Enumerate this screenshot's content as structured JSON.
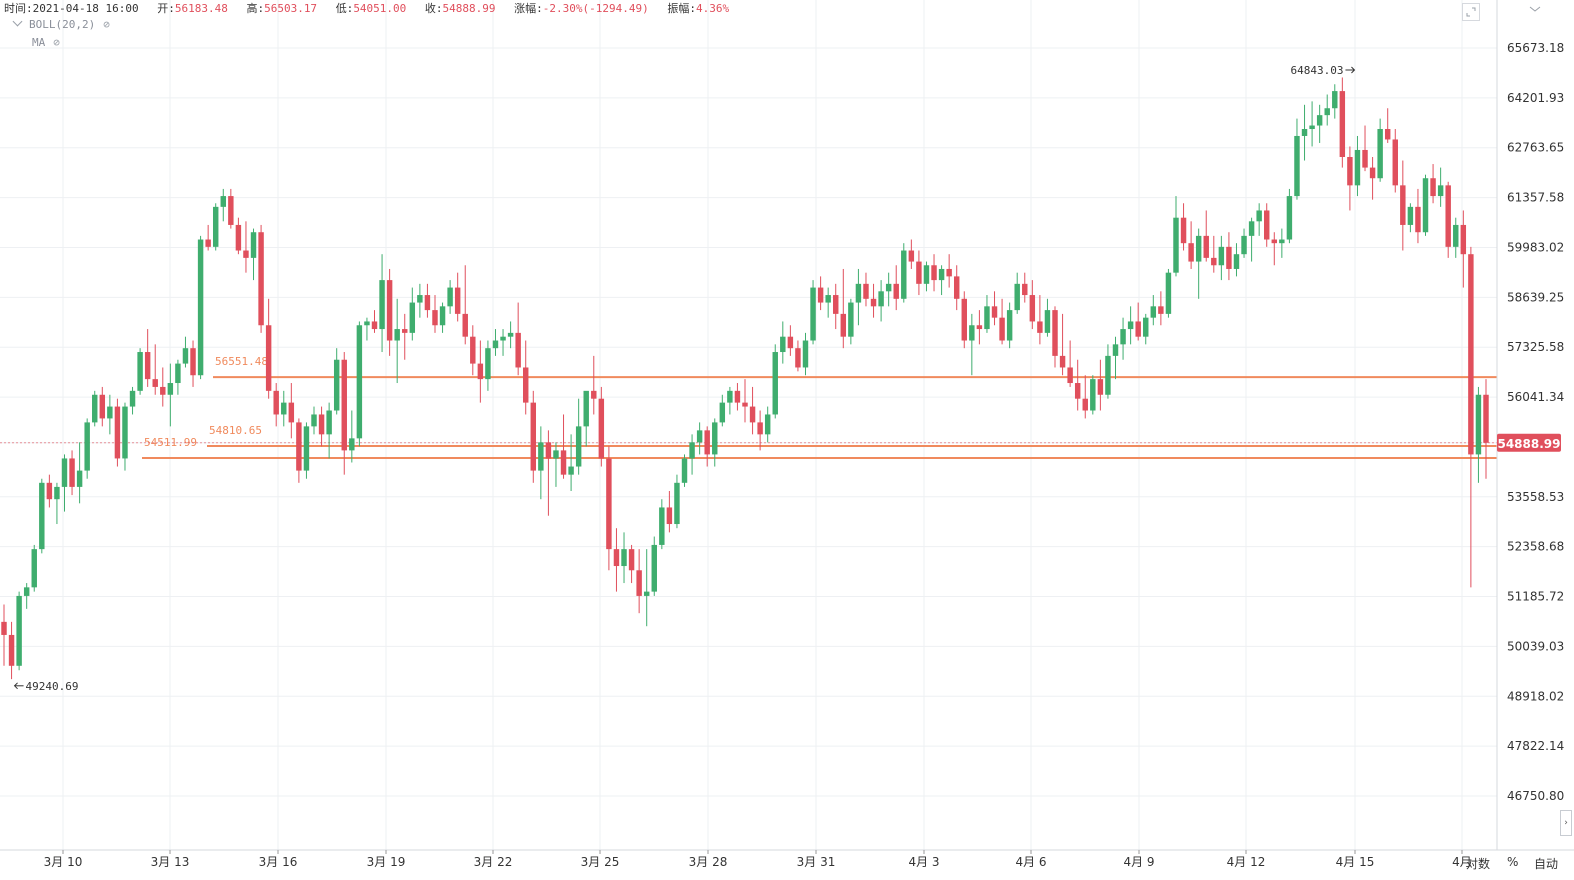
{
  "header": {
    "time_label": "时间:",
    "time_value": "2021-04-18 16:00",
    "open_label": "开:",
    "open_value": "56183.48",
    "high_label": "高:",
    "high_value": "56503.17",
    "low_label": "低:",
    "low_value": "54051.00",
    "close_label": "收:",
    "close_value": "54888.99",
    "change_label": "涨幅:",
    "change_value": "-2.30%(-1294.49)",
    "amp_label": "振幅:",
    "amp_value": "4.36%"
  },
  "indicators": [
    {
      "label": "BOLL(20,2)"
    },
    {
      "label": "MA"
    }
  ],
  "axis": {
    "bottom_right_percent": "%",
    "bottom_right_auto": "自动",
    "bottom_right_log": "对数"
  },
  "colors": {
    "up": "#3fad6e",
    "down": "#e04f5c",
    "hline": "#f08a5d",
    "grid": "#eef0f3",
    "price_tag": "#e04f5c"
  },
  "chart_data": {
    "type": "candlestick",
    "title": "",
    "y_scale": "log",
    "ylim": [
      46000,
      67000
    ],
    "y_ticks": [
      65673.18,
      64201.93,
      62763.65,
      61357.58,
      59983.02,
      58639.25,
      57325.58,
      56041.34,
      54888.99,
      53558.53,
      52358.68,
      51185.72,
      50039.03,
      48918.02,
      47822.14,
      46750.8
    ],
    "x_ticks": [
      "3月 10",
      "3月 13",
      "3月 16",
      "3月 19",
      "3月 22",
      "3月 25",
      "3月 28",
      "3月 31",
      "4月 3",
      "4月 6",
      "4月 9",
      "4月 12",
      "4月 15",
      "4月"
    ],
    "last_price": 54888.99,
    "high_marker": {
      "value": "64843.03"
    },
    "low_marker": {
      "value": "49240.69"
    },
    "horizontal_lines": [
      {
        "value": 56551.48,
        "label": "56551.48"
      },
      {
        "value": 54810.65,
        "label": "54810.65"
      },
      {
        "value": 54511.99,
        "label": "54511.99"
      }
    ],
    "candles": [
      [
        50600,
        51000,
        49600,
        50300
      ],
      [
        50300,
        50600,
        49300,
        49600
      ],
      [
        49600,
        51300,
        49500,
        51200
      ],
      [
        51200,
        51500,
        50900,
        51400
      ],
      [
        51400,
        52400,
        51300,
        52300
      ],
      [
        52300,
        54000,
        52200,
        53900
      ],
      [
        53900,
        54100,
        53300,
        53500
      ],
      [
        53500,
        53900,
        52900,
        53800
      ],
      [
        53800,
        54600,
        53200,
        54500
      ],
      [
        54500,
        54700,
        53600,
        53800
      ],
      [
        53800,
        54900,
        53400,
        54200
      ],
      [
        54200,
        55500,
        54000,
        55400
      ],
      [
        55400,
        56200,
        55300,
        56100
      ],
      [
        56100,
        56300,
        55300,
        55500
      ],
      [
        55500,
        56100,
        55100,
        55800
      ],
      [
        55800,
        56000,
        54300,
        54500
      ],
      [
        54500,
        55900,
        54200,
        55800
      ],
      [
        55800,
        56300,
        55600,
        56200
      ],
      [
        56200,
        57300,
        56100,
        57200
      ],
      [
        57200,
        57800,
        56300,
        56500
      ],
      [
        56500,
        57400,
        56100,
        56300
      ],
      [
        56300,
        56800,
        55800,
        56100
      ],
      [
        56100,
        56900,
        55300,
        56400
      ],
      [
        56400,
        57000,
        56100,
        56900
      ],
      [
        56900,
        57600,
        56800,
        57300
      ],
      [
        57300,
        57500,
        56300,
        56600
      ],
      [
        56600,
        60300,
        56500,
        60200
      ],
      [
        60200,
        60600,
        59900,
        60000
      ],
      [
        60000,
        61200,
        59900,
        61100
      ],
      [
        61100,
        61600,
        60700,
        61400
      ],
      [
        61400,
        61600,
        60500,
        60600
      ],
      [
        60600,
        60800,
        59800,
        59900
      ],
      [
        59900,
        60700,
        59300,
        59700
      ],
      [
        59700,
        60500,
        59100,
        60400
      ],
      [
        60400,
        60600,
        57700,
        57900
      ],
      [
        57900,
        58600,
        56000,
        56200
      ],
      [
        56200,
        56400,
        55300,
        55600
      ],
      [
        55600,
        56200,
        55300,
        55900
      ],
      [
        55900,
        56400,
        55000,
        55400
      ],
      [
        55400,
        55500,
        53900,
        54200
      ],
      [
        54200,
        55400,
        54000,
        55300
      ],
      [
        55300,
        55800,
        55100,
        55600
      ],
      [
        55600,
        55800,
        54800,
        55100
      ],
      [
        55100,
        55900,
        54500,
        55700
      ],
      [
        55700,
        57300,
        55600,
        57000
      ],
      [
        57000,
        57200,
        54100,
        54700
      ],
      [
        54700,
        55700,
        54400,
        55000
      ],
      [
        55000,
        58000,
        54800,
        57900
      ],
      [
        57900,
        58100,
        57500,
        58000
      ],
      [
        58000,
        58300,
        57700,
        57800
      ],
      [
        57800,
        59800,
        57200,
        59100
      ],
      [
        59100,
        59400,
        57100,
        57500
      ],
      [
        57500,
        58600,
        56400,
        57800
      ],
      [
        57800,
        58200,
        57000,
        57700
      ],
      [
        57700,
        58900,
        57500,
        58500
      ],
      [
        58500,
        59000,
        58100,
        58700
      ],
      [
        58700,
        59000,
        58100,
        58300
      ],
      [
        58300,
        58700,
        57700,
        57900
      ],
      [
        57900,
        58500,
        57700,
        58400
      ],
      [
        58400,
        59100,
        58200,
        58900
      ],
      [
        58900,
        59300,
        58000,
        58200
      ],
      [
        58200,
        59500,
        57400,
        57600
      ],
      [
        57600,
        57900,
        56600,
        56900
      ],
      [
        56900,
        57500,
        55900,
        56500
      ],
      [
        56500,
        57500,
        56200,
        57300
      ],
      [
        57300,
        57800,
        57100,
        57500
      ],
      [
        57500,
        57800,
        57100,
        57600
      ],
      [
        57600,
        58000,
        57300,
        57700
      ],
      [
        57700,
        58500,
        56600,
        56800
      ],
      [
        56800,
        57500,
        55600,
        55900
      ],
      [
        55900,
        56200,
        53900,
        54200
      ],
      [
        54200,
        55300,
        53500,
        54900
      ],
      [
        54900,
        55200,
        53100,
        54500
      ],
      [
        54500,
        54900,
        53800,
        54700
      ],
      [
        54700,
        55600,
        54000,
        54100
      ],
      [
        54100,
        55100,
        53700,
        54300
      ],
      [
        54300,
        56000,
        54100,
        55300
      ],
      [
        55300,
        56100,
        54800,
        56200
      ],
      [
        56200,
        57100,
        55600,
        56000
      ],
      [
        56000,
        56300,
        54300,
        54500
      ],
      [
        54500,
        54800,
        51800,
        52300
      ],
      [
        52300,
        52800,
        51300,
        51900
      ],
      [
        51900,
        52700,
        51500,
        52300
      ],
      [
        52300,
        52400,
        51500,
        51800
      ],
      [
        51800,
        52300,
        50800,
        51200
      ],
      [
        51200,
        52300,
        50500,
        51300
      ],
      [
        51300,
        52600,
        51200,
        52400
      ],
      [
        52400,
        53500,
        52300,
        53300
      ],
      [
        53300,
        53700,
        52700,
        52900
      ],
      [
        52900,
        54100,
        52800,
        53900
      ],
      [
        53900,
        54600,
        53800,
        54500
      ],
      [
        54500,
        55100,
        54100,
        54900
      ],
      [
        54900,
        55400,
        54600,
        55200
      ],
      [
        55200,
        55300,
        54300,
        54600
      ],
      [
        54600,
        55500,
        54300,
        55400
      ],
      [
        55400,
        56100,
        55300,
        55900
      ],
      [
        55900,
        56300,
        55600,
        56200
      ],
      [
        56200,
        56400,
        55700,
        55900
      ],
      [
        55900,
        56500,
        55400,
        55800
      ],
      [
        55800,
        56300,
        55100,
        55400
      ],
      [
        55400,
        55700,
        54700,
        55100
      ],
      [
        55100,
        55800,
        54900,
        55600
      ],
      [
        55600,
        57400,
        55500,
        57200
      ],
      [
        57200,
        58000,
        56900,
        57600
      ],
      [
        57600,
        57900,
        57100,
        57300
      ],
      [
        57300,
        57500,
        56700,
        56800
      ],
      [
        56800,
        57700,
        56600,
        57500
      ],
      [
        57500,
        59100,
        57400,
        58900
      ],
      [
        58900,
        59200,
        58300,
        58500
      ],
      [
        58500,
        58900,
        58100,
        58700
      ],
      [
        58700,
        59000,
        57800,
        58200
      ],
      [
        58200,
        59400,
        57300,
        57600
      ],
      [
        57600,
        58600,
        57400,
        58500
      ],
      [
        58500,
        59400,
        57900,
        59000
      ],
      [
        59000,
        59300,
        58400,
        58600
      ],
      [
        58600,
        59000,
        58100,
        58400
      ],
      [
        58400,
        59100,
        58000,
        58800
      ],
      [
        58800,
        59300,
        58400,
        59000
      ],
      [
        59000,
        59500,
        58300,
        58600
      ],
      [
        58600,
        60100,
        58500,
        59900
      ],
      [
        59900,
        60200,
        59400,
        59600
      ],
      [
        59600,
        59900,
        58700,
        59000
      ],
      [
        59000,
        59600,
        58800,
        59500
      ],
      [
        59500,
        59800,
        58800,
        59100
      ],
      [
        59100,
        59500,
        58700,
        59400
      ],
      [
        59400,
        59800,
        58900,
        59200
      ],
      [
        59200,
        59500,
        58300,
        58600
      ],
      [
        58600,
        58800,
        57300,
        57500
      ],
      [
        57500,
        58200,
        56600,
        57900
      ],
      [
        57900,
        58300,
        57400,
        57800
      ],
      [
        57800,
        58700,
        57700,
        58400
      ],
      [
        58400,
        58800,
        57900,
        58100
      ],
      [
        58100,
        58600,
        57400,
        57500
      ],
      [
        57500,
        58500,
        57300,
        58300
      ],
      [
        58300,
        59300,
        58200,
        59000
      ],
      [
        59000,
        59300,
        58500,
        58700
      ],
      [
        58700,
        59100,
        57800,
        58000
      ],
      [
        58000,
        58700,
        57400,
        57700
      ],
      [
        57700,
        58600,
        57600,
        58300
      ],
      [
        58300,
        58400,
        56800,
        57100
      ],
      [
        57100,
        58200,
        56600,
        56800
      ],
      [
        56800,
        57500,
        56300,
        56400
      ],
      [
        56400,
        57000,
        55700,
        56000
      ],
      [
        56000,
        56600,
        55500,
        55700
      ],
      [
        55700,
        56600,
        55600,
        56500
      ],
      [
        56500,
        57000,
        55700,
        56100
      ],
      [
        56100,
        57400,
        56000,
        57100
      ],
      [
        57100,
        57600,
        56500,
        57400
      ],
      [
        57400,
        58100,
        57000,
        57800
      ],
      [
        57800,
        58400,
        57400,
        58000
      ],
      [
        58000,
        58500,
        57500,
        57600
      ],
      [
        57600,
        58200,
        57400,
        58100
      ],
      [
        58100,
        58700,
        57900,
        58400
      ],
      [
        58400,
        58800,
        57900,
        58200
      ],
      [
        58200,
        59400,
        58100,
        59300
      ],
      [
        59300,
        61400,
        59200,
        60800
      ],
      [
        60800,
        61200,
        59900,
        60100
      ],
      [
        60100,
        60700,
        59400,
        59600
      ],
      [
        59600,
        60500,
        58600,
        60300
      ],
      [
        60300,
        61000,
        59600,
        59700
      ],
      [
        59700,
        60300,
        59300,
        59500
      ],
      [
        59500,
        60300,
        59100,
        60000
      ],
      [
        60000,
        60400,
        59100,
        59400
      ],
      [
        59400,
        60100,
        59200,
        59800
      ],
      [
        59800,
        60500,
        59700,
        60300
      ],
      [
        60300,
        60800,
        59600,
        60700
      ],
      [
        60700,
        61200,
        60300,
        61000
      ],
      [
        61000,
        61200,
        60000,
        60200
      ],
      [
        60200,
        60400,
        59500,
        60100
      ],
      [
        60100,
        60500,
        59700,
        60200
      ],
      [
        60200,
        61600,
        60100,
        61400
      ],
      [
        61400,
        63600,
        61300,
        63100
      ],
      [
        63100,
        64000,
        62400,
        63300
      ],
      [
        63300,
        64100,
        62800,
        63400
      ],
      [
        63400,
        64000,
        62900,
        63700
      ],
      [
        63700,
        64300,
        63400,
        63900
      ],
      [
        63900,
        64600,
        63600,
        64400
      ],
      [
        64400,
        64800,
        62200,
        62500
      ],
      [
        62500,
        62800,
        61000,
        61700
      ],
      [
        61700,
        63100,
        61400,
        62700
      ],
      [
        62700,
        63400,
        62100,
        62200
      ],
      [
        62200,
        62500,
        61300,
        61900
      ],
      [
        61900,
        63600,
        61800,
        63300
      ],
      [
        63300,
        63900,
        62900,
        63000
      ],
      [
        63000,
        63300,
        61500,
        61700
      ],
      [
        61700,
        62400,
        59900,
        60600
      ],
      [
        60600,
        61200,
        60400,
        61100
      ],
      [
        61100,
        61600,
        60100,
        60400
      ],
      [
        60400,
        62000,
        60300,
        61900
      ],
      [
        61900,
        62300,
        61200,
        61400
      ],
      [
        61400,
        62200,
        61100,
        61700
      ],
      [
        61700,
        61800,
        59700,
        60000
      ],
      [
        60000,
        60800,
        59700,
        60600
      ],
      [
        60600,
        61000,
        58900,
        59800
      ],
      [
        59800,
        60000,
        51400,
        54600
      ],
      [
        54600,
        56300,
        53900,
        56100
      ],
      [
        56100,
        56500,
        54000,
        54889
      ]
    ]
  }
}
